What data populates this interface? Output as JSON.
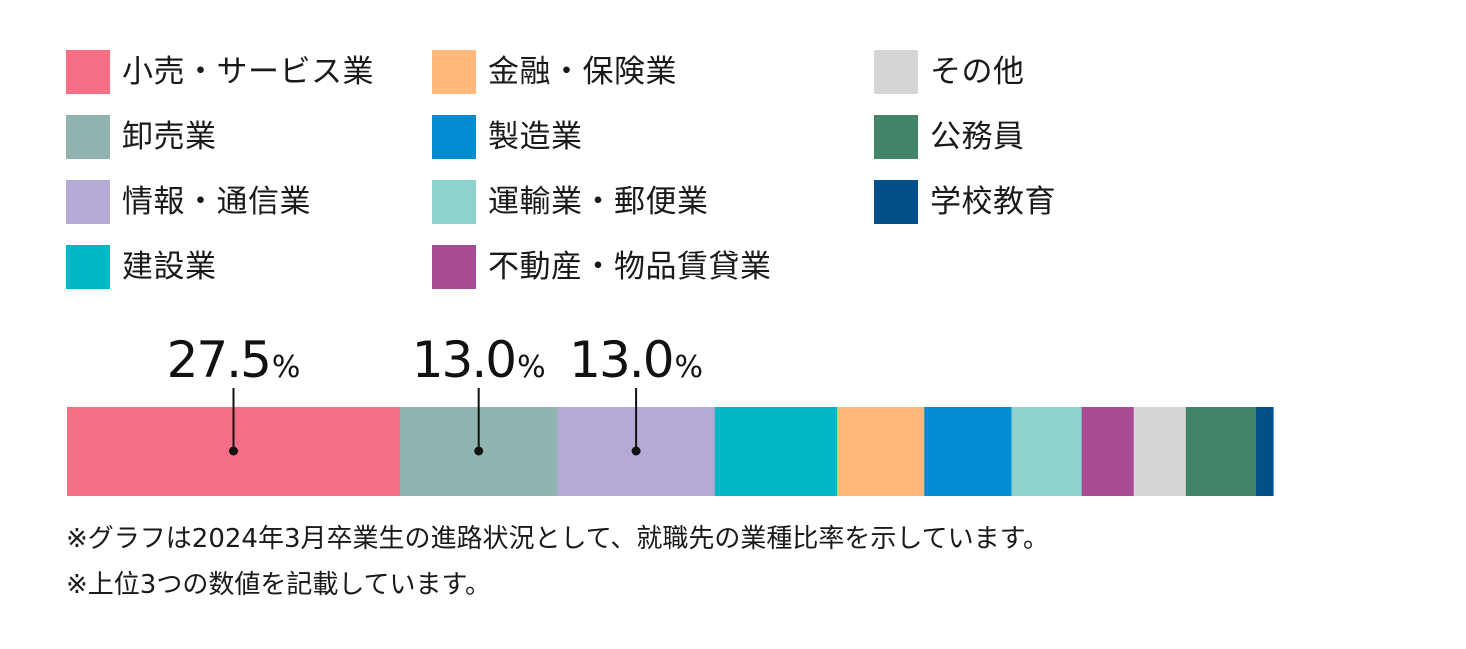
{
  "legend": [
    {
      "label": "小売・サービス業",
      "color": "#f66f86"
    },
    {
      "label": "卸売業",
      "color": "#90b5b0"
    },
    {
      "label": "情報・通信業",
      "color": "#b5a9d6"
    },
    {
      "label": "建設業",
      "color": "#02b7c8"
    },
    {
      "label": "金融・保険業",
      "color": "#fdb87a"
    },
    {
      "label": "製造業",
      "color": "#018bd0"
    },
    {
      "label": "運輸業・郵便業",
      "color": "#8ed2cf"
    },
    {
      "label": "不動産・物品賃貸業",
      "color": "#a74b95"
    },
    {
      "label": "その他",
      "color": "#d6d6d6"
    },
    {
      "label": "公務員",
      "color": "#418467"
    },
    {
      "label": "学校教育",
      "color": "#034f88"
    }
  ],
  "chart_data": {
    "type": "bar",
    "orientation": "horizontal-stacked",
    "unit": "%",
    "series": [
      {
        "name": "小売・サービス業",
        "value": 27.5,
        "color": "#f66f86",
        "label": "27.5"
      },
      {
        "name": "卸売業",
        "value": 13.0,
        "color": "#90b5b0",
        "label": "13.0"
      },
      {
        "name": "情報・通信業",
        "value": 13.0,
        "color": "#b5a9d6",
        "label": "13.0"
      },
      {
        "name": "建設業",
        "value": 10.1,
        "color": "#02b7c8"
      },
      {
        "name": "金融・保険業",
        "value": 7.2,
        "color": "#fdb87a"
      },
      {
        "name": "製造業",
        "value": 7.2,
        "color": "#018bd0"
      },
      {
        "name": "運輸業・郵便業",
        "value": 5.8,
        "color": "#8ed2cf"
      },
      {
        "name": "不動産・物品賃貸業",
        "value": 4.3,
        "color": "#a74b95"
      },
      {
        "name": "その他",
        "value": 4.3,
        "color": "#d6d6d6"
      },
      {
        "name": "公務員",
        "value": 5.8,
        "color": "#418467"
      },
      {
        "name": "学校教育",
        "value": 1.4,
        "color": "#034f88"
      }
    ]
  },
  "notes": [
    "※グラフは2024年3月卒業生の進路状況として、就職先の業種比率を示しています。",
    "※上位3つの数値を記載しています。"
  ]
}
